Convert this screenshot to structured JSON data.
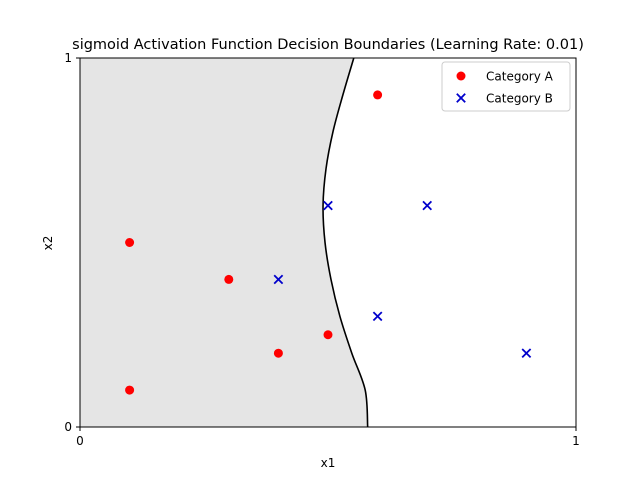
{
  "chart_data": {
    "type": "scatter",
    "title": "sigmoid Activation Function Decision Boundaries (Learning Rate: 0.01)",
    "xlabel": "x1",
    "ylabel": "x2",
    "xlim": [
      0,
      1
    ],
    "ylim": [
      0,
      1
    ],
    "xticks": [
      "0",
      "1"
    ],
    "yticks": [
      "0",
      "1"
    ],
    "grid": false,
    "legend_position": "top-right",
    "region_color": "#e5e5e5",
    "boundary_color": "#000000",
    "boundary": {
      "x": [
        0.552,
        0.53,
        0.51,
        0.496,
        0.49,
        0.494,
        0.506,
        0.524,
        0.548,
        0.575,
        0.58
      ],
      "y": [
        1.0,
        0.9,
        0.8,
        0.7,
        0.6,
        0.5,
        0.4,
        0.3,
        0.2,
        0.1,
        0.0
      ]
    },
    "series": [
      {
        "name": "Category A",
        "marker": "circle",
        "color": "#ff0000",
        "points": [
          [
            0.1,
            0.1
          ],
          [
            0.4,
            0.2
          ],
          [
            0.5,
            0.25
          ],
          [
            0.3,
            0.4
          ],
          [
            0.1,
            0.5
          ],
          [
            0.6,
            0.9
          ]
        ]
      },
      {
        "name": "Category B",
        "marker": "x",
        "color": "#0000cc",
        "points": [
          [
            0.4,
            0.4
          ],
          [
            0.5,
            0.6
          ],
          [
            0.7,
            0.6
          ],
          [
            0.6,
            0.3
          ],
          [
            0.9,
            0.2
          ]
        ]
      }
    ]
  }
}
